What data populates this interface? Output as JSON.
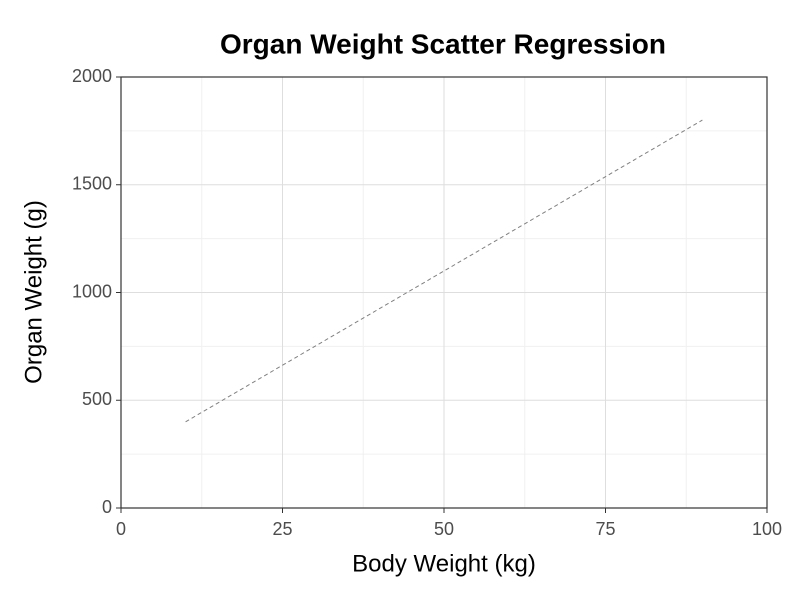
{
  "chart_data": {
    "type": "line",
    "title": "Organ Weight Scatter Regression",
    "xlabel": "Body Weight (kg)",
    "ylabel": "Organ Weight (g)",
    "series": [
      {
        "x": [
          10,
          90
        ],
        "values": [
          400,
          1800
        ],
        "color": "#808080",
        "linestyle": "dashed"
      }
    ],
    "xlim": [
      0,
      100
    ],
    "xticks": [
      0,
      25,
      50,
      75,
      100
    ],
    "ylim": [
      0,
      2000
    ],
    "yticks": [
      0,
      500,
      1000,
      1500,
      2000
    ],
    "xminorticks": [
      12.5,
      37.5,
      62.5,
      87.5
    ],
    "yminorticks": [
      250,
      750,
      1250,
      1750
    ],
    "grid": true
  }
}
